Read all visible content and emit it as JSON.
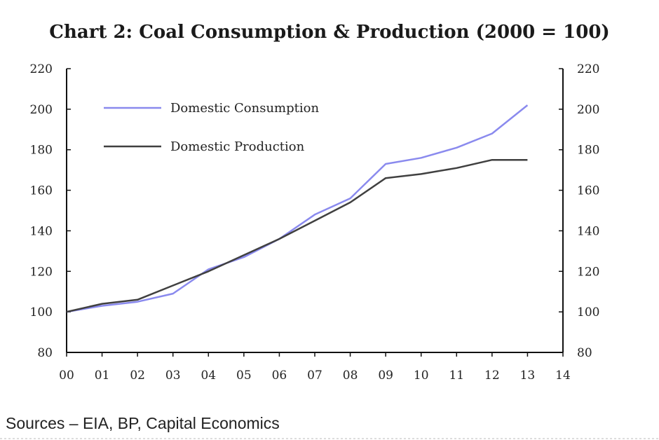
{
  "chart_data": {
    "type": "line",
    "title": "Chart 2: Coal Consumption & Production (2000 = 100)",
    "x_ticks": [
      "00",
      "01",
      "02",
      "03",
      "04",
      "05",
      "06",
      "07",
      "08",
      "09",
      "10",
      "11",
      "12",
      "13",
      "14"
    ],
    "xlim": [
      0,
      14
    ],
    "ylim": [
      80,
      220
    ],
    "y_ticks": [
      80,
      100,
      120,
      140,
      160,
      180,
      200,
      220
    ],
    "y_ticks_right": [
      80,
      100,
      120,
      140,
      160,
      180,
      200,
      220
    ],
    "legend_position": "top-left",
    "grid": false,
    "series": [
      {
        "name": "Domestic Consumption",
        "color": "#8a8aee",
        "x": [
          "00",
          "01",
          "02",
          "03",
          "04",
          "05",
          "06",
          "07",
          "08",
          "09",
          "10",
          "11",
          "12",
          "13"
        ],
        "values": [
          100,
          103,
          105,
          109,
          121,
          127,
          136,
          148,
          156,
          173,
          176,
          181,
          188,
          202
        ]
      },
      {
        "name": "Domestic Production",
        "color": "#404040",
        "x": [
          "00",
          "01",
          "02",
          "03",
          "04",
          "05",
          "06",
          "07",
          "08",
          "09",
          "10",
          "11",
          "12",
          "13"
        ],
        "values": [
          100,
          104,
          106,
          113,
          120,
          128,
          136,
          145,
          154,
          166,
          168,
          171,
          175,
          175
        ]
      }
    ]
  },
  "footer": {
    "sources": "Sources – EIA, BP, Capital Economics"
  }
}
